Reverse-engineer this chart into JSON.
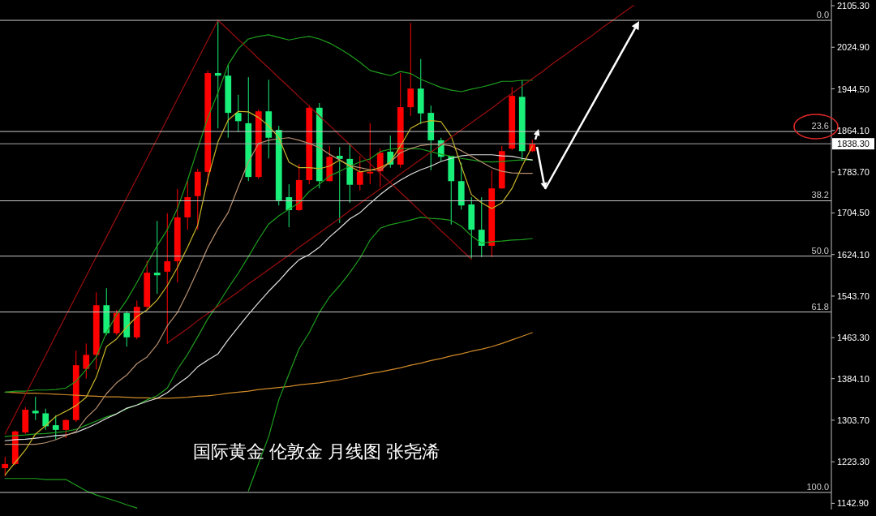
{
  "chart_data": {
    "type": "candlestick",
    "annotations": [
      "国际黄金 伦敦金 月线图 张尧浠",
      {
        "text": "0.0",
        "y": 2077
      },
      {
        "text": "23.6",
        "y": 1862
      },
      {
        "text": "38.2",
        "y": 1728
      },
      {
        "text": "50.0",
        "y": 1621
      },
      {
        "text": "61.8",
        "y": 1513
      },
      {
        "text": "100.0",
        "y": 1164
      }
    ],
    "categories": [
      null,
      null,
      null,
      null,
      null,
      null,
      null,
      null,
      null,
      null,
      null,
      null,
      null,
      null,
      null,
      null,
      null,
      null,
      null,
      null,
      null,
      null,
      null,
      null,
      null,
      null,
      null,
      null,
      null,
      null,
      null,
      null,
      null,
      null,
      null,
      null,
      null,
      null,
      null,
      null,
      null,
      null,
      null,
      null,
      null,
      null,
      null,
      null,
      null,
      null,
      null,
      null,
      null,
      null,
      null,
      null,
      null,
      null,
      null,
      null,
      null,
      null,
      null,
      null,
      null,
      null,
      null,
      null,
      null,
      null,
      null,
      null,
      null,
      null,
      null,
      null,
      null,
      null,
      null,
      null,
      null,
      null
    ],
    "ohlc": [
      [
        1211,
        1233,
        1195,
        1219
      ],
      [
        1219,
        1284,
        1217,
        1282
      ],
      [
        1280,
        1329,
        1277,
        1324
      ],
      [
        1322,
        1349,
        1304,
        1317
      ],
      [
        1317,
        1326,
        1285,
        1292
      ],
      [
        1294,
        1313,
        1266,
        1285
      ],
      [
        1285,
        1306,
        1269,
        1304
      ],
      [
        1304,
        1438,
        1300,
        1410
      ],
      [
        1403,
        1452,
        1384,
        1430
      ],
      [
        1430,
        1551,
        1402,
        1526
      ],
      [
        1526,
        1559,
        1468,
        1472
      ],
      [
        1472,
        1517,
        1468,
        1511
      ],
      [
        1511,
        1515,
        1446,
        1464
      ],
      [
        1464,
        1535,
        1460,
        1523
      ],
      [
        1523,
        1612,
        1517,
        1589
      ],
      [
        1589,
        1689,
        1548,
        1584
      ],
      [
        1591,
        1704,
        1451,
        1611
      ],
      [
        1611,
        1751,
        1570,
        1696
      ],
      [
        1696,
        1766,
        1672,
        1735
      ],
      [
        1737,
        1790,
        1672,
        1784
      ],
      [
        1784,
        1980,
        1758,
        1975
      ],
      [
        1975,
        2075,
        1868,
        1970
      ],
      [
        1970,
        1991,
        1850,
        1898
      ],
      [
        1898,
        1933,
        1861,
        1882
      ],
      [
        1878,
        1967,
        1766,
        1774
      ],
      [
        1774,
        1905,
        1770,
        1901
      ],
      [
        1901,
        1962,
        1810,
        1850
      ],
      [
        1865,
        1873,
        1719,
        1729
      ],
      [
        1735,
        1760,
        1677,
        1710
      ],
      [
        1710,
        1799,
        1708,
        1768
      ],
      [
        1768,
        1913,
        1760,
        1908
      ],
      [
        1908,
        1917,
        1752,
        1766
      ],
      [
        1766,
        1834,
        1766,
        1813
      ],
      [
        1815,
        1832,
        1685,
        1809
      ],
      [
        1809,
        1837,
        1724,
        1759
      ],
      [
        1759,
        1815,
        1748,
        1784
      ],
      [
        1781,
        1878,
        1760,
        1784
      ],
      [
        1785,
        1829,
        1755,
        1821
      ],
      [
        1823,
        1854,
        1792,
        1798
      ],
      [
        1798,
        1975,
        1792,
        1909
      ],
      [
        1909,
        2072,
        1892,
        1945
      ],
      [
        1945,
        2002,
        1876,
        1897
      ],
      [
        1898,
        1912,
        1787,
        1845
      ],
      [
        1845,
        1850,
        1805,
        1813
      ],
      [
        1815,
        1815,
        1682,
        1766
      ],
      [
        1766,
        1802,
        1711,
        1719
      ],
      [
        1721,
        1735,
        1617,
        1672
      ],
      [
        1672,
        1735,
        1619,
        1641
      ],
      [
        1641,
        1787,
        1619,
        1752
      ],
      [
        1752,
        1834,
        1751,
        1824
      ],
      [
        1829,
        1948,
        1826,
        1931
      ],
      [
        1929,
        1961,
        1805,
        1824
      ],
      [
        1824,
        1846,
        1822,
        1838.3
      ],
      null,
      null,
      null,
      null,
      null,
      null,
      null,
      null,
      null,
      null,
      null,
      null,
      null,
      null,
      null,
      null,
      null,
      null,
      null,
      null,
      null,
      null,
      null,
      null,
      null,
      null,
      null,
      null,
      null
    ],
    "colors": [
      "#ff0000",
      "#ff0000",
      "#ff0000",
      "#19f07a",
      "#19f07a",
      "#19f07a",
      "#ff0000",
      "#ff0000",
      "#ff0000",
      "#ff0000",
      "#19f07a",
      "#ff0000",
      "#19f07a",
      "#ff0000",
      "#ff0000",
      "#19f07a",
      "#ff0000",
      "#ff0000",
      "#ff0000",
      "#ff0000",
      "#ff0000",
      "#19f07a",
      "#19f07a",
      "#19f07a",
      "#19f07a",
      "#ff0000",
      "#19f07a",
      "#19f07a",
      "#19f07a",
      "#ff0000",
      "#ff0000",
      "#19f07a",
      "#ff0000",
      "#19f07a",
      "#19f07a",
      "#ff0000",
      "#ff0000",
      "#ff0000",
      "#19f07a",
      "#ff0000",
      "#ff0000",
      "#19f07a",
      "#19f07a",
      "#19f07a",
      "#19f07a",
      "#19f07a",
      "#19f07a",
      "#19f07a",
      "#ff0000",
      "#ff0000",
      "#ff0000",
      "#19f07a",
      "#ff0000",
      null,
      null,
      null,
      null,
      null,
      null,
      null,
      null,
      null,
      null,
      null,
      null,
      null,
      null,
      null,
      null,
      null,
      null,
      null,
      null,
      null,
      null,
      null,
      null,
      null,
      null,
      null,
      null,
      null
    ],
    "series": [
      {
        "type": "line",
        "color": "#d08a28",
        "values": [
          1358,
          1357,
          1356,
          1356,
          1355,
          1354,
          1353,
          1352,
          1351,
          1350,
          1349,
          1349,
          1348,
          1347,
          1347,
          1346,
          1346,
          1347,
          1348,
          1350,
          1351,
          1353,
          1356,
          1358,
          1360,
          1363,
          1365,
          1367,
          1369,
          1372,
          1374,
          1376,
          1379,
          1382,
          1386,
          1390,
          1394,
          1397,
          1401,
          1405,
          1410,
          1414,
          1419,
          1423,
          1428,
          1432,
          1437,
          1441,
          1446,
          1452,
          1459,
          1466,
          1473,
          null,
          null,
          null,
          null,
          null,
          null,
          null,
          null,
          null,
          null,
          null,
          null,
          null,
          null,
          null,
          null,
          null,
          null,
          null,
          null,
          null,
          null,
          null,
          null,
          null,
          null,
          null,
          null,
          null
        ]
      },
      {
        "type": "line",
        "color": "#1e9e1e",
        "values": [
          1358,
          1360,
          1360,
          1362,
          1362,
          1363,
          1366,
          1379,
          1402,
          1426,
          1473,
          1508,
          1536,
          1570,
          1606,
          1641,
          1672,
          1713,
          1768,
          1829,
          1889,
          1937,
          1991,
          2022,
          2041,
          2046,
          2049,
          2044,
          2039,
          2043,
          2046,
          2041,
          2033,
          2022,
          2010,
          1996,
          1980,
          1975,
          1970,
          1978,
          1974,
          1963,
          1955,
          1947,
          1942,
          1939,
          1944,
          1948,
          1953,
          1959,
          1959,
          1961,
          1961,
          null,
          null,
          null,
          null,
          null,
          null,
          null,
          null,
          null,
          null,
          null,
          null,
          null,
          null,
          null,
          null,
          null,
          null,
          null,
          null,
          null,
          null,
          null,
          null,
          null,
          null,
          null,
          null,
          null
        ]
      },
      {
        "type": "line",
        "color": "#1e9e1e",
        "values": [
          1272,
          1274,
          1275,
          1277,
          1278,
          1280,
          1282,
          1286,
          1294,
          1302,
          1310,
          1316,
          1326,
          1333,
          1343,
          1351,
          1366,
          1402,
          1431,
          1465,
          1500,
          1528,
          1559,
          1588,
          1620,
          1653,
          1683,
          1699,
          1712,
          1724,
          1746,
          1760,
          1776,
          1785,
          1795,
          1803,
          1809,
          1823,
          1828,
          1829,
          1829,
          1828,
          1823,
          1818,
          1814,
          1810,
          1807,
          1804,
          1803,
          1804,
          1806,
          1807,
          1807,
          null,
          null,
          null,
          null,
          null,
          null,
          null,
          null,
          null,
          null,
          null,
          null,
          null,
          null,
          null,
          null,
          null,
          null,
          null,
          null,
          null,
          null,
          null,
          null,
          null,
          null,
          null,
          null,
          null
        ]
      },
      {
        "type": "line",
        "color": "#1e9e1e",
        "values": [
          1191,
          1191,
          1191,
          1191,
          1189,
          1189,
          1189,
          1178,
          1167,
          1159,
          1153,
          1147,
          1140,
          1134,
          null,
          null,
          null,
          null,
          null,
          null,
          null,
          null,
          null,
          null,
          1167,
          1220,
          1272,
          1343,
          1393,
          1442,
          1473,
          1512,
          1542,
          1564,
          1589,
          1617,
          1652,
          1675,
          1682,
          1686,
          1691,
          1696,
          1694,
          1693,
          1690,
          1679,
          1660,
          1646,
          1649,
          1650,
          1652,
          1653,
          1655,
          null,
          null,
          null,
          null,
          null,
          null,
          null,
          null,
          null,
          null,
          null,
          null,
          null,
          null,
          null,
          null,
          null,
          null,
          null,
          null,
          null,
          null,
          null,
          null,
          null,
          null,
          null,
          null,
          null
        ]
      },
      {
        "type": "line",
        "color": "#e0e0e0",
        "values": [
          1264,
          1266,
          1267,
          1269,
          1271,
          1274,
          1275,
          1280,
          1288,
          1297,
          1307,
          1316,
          1327,
          1333,
          1340,
          1346,
          1357,
          1373,
          1387,
          1407,
          1420,
          1432,
          1459,
          1484,
          1508,
          1531,
          1553,
          1573,
          1595,
          1614,
          1624,
          1638,
          1658,
          1675,
          1693,
          1705,
          1723,
          1740,
          1755,
          1768,
          1779,
          1788,
          1795,
          1804,
          1810,
          1815,
          1817,
          1817,
          1817,
          1815,
          1814,
          1810,
          1807,
          null,
          null,
          null,
          null,
          null,
          null,
          null,
          null,
          null,
          null,
          null,
          null,
          null,
          null,
          null,
          null,
          null,
          null,
          null,
          null,
          null,
          null,
          null,
          null,
          null,
          null,
          null,
          null,
          null
        ]
      },
      {
        "type": "line",
        "color": "#b89070",
        "values": [
          1257,
          1257,
          1257,
          1257,
          1260,
          1266,
          1274,
          1282,
          1308,
          1327,
          1355,
          1376,
          1391,
          1413,
          1426,
          1450,
          1486,
          1512,
          1551,
          1594,
          1638,
          1674,
          1705,
          1755,
          1803,
          1839,
          1845,
          1848,
          1850,
          1845,
          1839,
          1831,
          1818,
          1807,
          1796,
          1792,
          1788,
          1787,
          1803,
          1821,
          1829,
          1835,
          1837,
          1837,
          1834,
          1825,
          1814,
          1803,
          1792,
          1785,
          1782,
          1781,
          1781,
          null,
          null,
          null,
          null,
          null,
          null,
          null,
          null,
          null,
          null,
          null,
          null,
          null,
          null,
          null,
          null,
          null,
          null,
          null,
          null,
          null,
          null,
          null,
          null,
          null,
          null,
          null,
          null,
          null
        ]
      },
      {
        "type": "line",
        "color": "#c8b428",
        "values": [
          1198,
          1222,
          1246,
          1277,
          1293,
          1311,
          1321,
          1332,
          1348,
          1387,
          1446,
          1461,
          1484,
          1504,
          1517,
          1536,
          1564,
          1599,
          1638,
          1681,
          1771,
          1842,
          1884,
          1901,
          1900,
          1889,
          1873,
          1850,
          1803,
          1792,
          1792,
          1790,
          1795,
          1807,
          1795,
          1784,
          1787,
          1792,
          1803,
          1834,
          1868,
          1879,
          1883,
          1881,
          1853,
          1795,
          1740,
          1724,
          1713,
          1724,
          1752,
          1795,
          1834,
          null,
          null,
          null,
          null,
          null,
          null,
          null,
          null,
          null,
          null,
          null,
          null,
          null,
          null,
          null,
          null,
          null,
          null,
          null,
          null,
          null,
          null,
          null,
          null,
          null,
          null,
          null,
          null,
          null
        ]
      },
      {
        "type": "line",
        "color": "#9b0e0e",
        "values": [
          1277,
          1315,
          1353,
          1391,
          1429,
          1468,
          1506,
          1544,
          1582,
          1620,
          1658,
          1696,
          1734,
          1772,
          1810,
          1848,
          1887,
          1925,
          1963,
          2001,
          2039,
          2077,
          null,
          null,
          null,
          null,
          null,
          null,
          null,
          null,
          null,
          null,
          null,
          null,
          null,
          null,
          null,
          null,
          null,
          null,
          null,
          null,
          null,
          null,
          null,
          null,
          null,
          null,
          null,
          null,
          null,
          null,
          null,
          null,
          null,
          null,
          null,
          null,
          null,
          null,
          null,
          null,
          null,
          null,
          null,
          null,
          null,
          null,
          null,
          null,
          null,
          null,
          null,
          null,
          null,
          null,
          null,
          null,
          null,
          null,
          null,
          null
        ]
      },
      {
        "type": "line",
        "color": "#9b0e0e",
        "values": [
          null,
          null,
          null,
          null,
          null,
          null,
          null,
          null,
          null,
          null,
          null,
          null,
          null,
          null,
          null,
          null,
          null,
          null,
          null,
          null,
          null,
          2077,
          2059,
          2040,
          2022,
          2003,
          1985,
          1966,
          1948,
          1929,
          1911,
          1892,
          1874,
          1855,
          1837,
          1818,
          1800,
          1781,
          1763,
          1744,
          1726,
          1707,
          1689,
          1670,
          1652,
          1633,
          1615,
          null,
          null,
          null,
          null,
          null,
          null,
          null,
          null,
          null,
          null,
          null,
          null,
          null,
          null,
          null,
          null,
          null,
          null,
          null,
          null,
          null,
          null,
          null,
          null,
          null,
          null,
          null,
          null,
          null,
          null,
          null,
          null,
          null,
          null,
          null
        ]
      },
      {
        "type": "line",
        "color": "#9b0e0e",
        "values": [
          null,
          null,
          null,
          null,
          null,
          null,
          null,
          null,
          null,
          null,
          null,
          null,
          null,
          null,
          null,
          null,
          1453,
          1467,
          1481,
          1496,
          1510,
          1524,
          1538,
          1552,
          1567,
          1581,
          1595,
          1609,
          1623,
          1638,
          1652,
          1666,
          1680,
          1694,
          1709,
          1723,
          1737,
          1751,
          1765,
          1780,
          1794,
          1808,
          1822,
          1836,
          1851,
          1865,
          1879,
          1893,
          1907,
          1922,
          1936,
          1950,
          1964,
          1978,
          1993,
          2007,
          2021,
          2035,
          2049,
          2064,
          2078,
          2092,
          2106,
          null,
          null,
          null,
          null,
          null,
          null,
          null,
          null,
          null,
          null,
          null,
          null,
          null,
          null,
          null,
          null,
          null,
          null,
          null
        ]
      }
    ],
    "ylim": [
      1131,
      2116.3
    ],
    "yticks": [
      {
        "value": 2105.3,
        "label": "2105.30"
      },
      {
        "value": 2024.9,
        "label": "2024.90"
      },
      {
        "value": 1944.5,
        "label": "1944.50"
      },
      {
        "value": 1864.1,
        "label": "1864.10"
      },
      {
        "value": 1783.7,
        "label": "1783.70"
      },
      {
        "value": 1704.5,
        "label": "1704.50"
      },
      {
        "value": 1624.1,
        "label": "1624.10"
      },
      {
        "value": 1543.7,
        "label": "1543.70"
      },
      {
        "value": 1463.3,
        "label": "1463.30"
      },
      {
        "value": 1384.1,
        "label": "1384.10"
      },
      {
        "value": 1303.7,
        "label": "1303.70"
      },
      {
        "value": 1223.3,
        "label": "1223.30"
      },
      {
        "value": 1142.9,
        "label": "1142.90"
      }
    ],
    "tick_labels": "y",
    "ref_lines": [
      {
        "axis": "y",
        "value": 2077,
        "color": "#c8c8c8",
        "line_style": "solid"
      },
      {
        "axis": "y",
        "value": 1862,
        "color": "#c8c8c8",
        "line_style": "solid"
      },
      {
        "axis": "y",
        "value": 1838.3,
        "label": "1838.30",
        "color": "#a8a8a8",
        "line_style": "solid"
      },
      {
        "axis": "y",
        "value": 1728,
        "color": "#c8c8c8",
        "line_style": "solid"
      },
      {
        "axis": "y",
        "value": 1621,
        "color": "#c8c8c8",
        "line_style": "solid"
      },
      {
        "axis": "y",
        "value": 1513,
        "color": "#c8c8c8",
        "line_style": "solid"
      },
      {
        "axis": "y",
        "value": 1164,
        "color": "#c8c8c8",
        "line_style": "solid"
      }
    ]
  }
}
